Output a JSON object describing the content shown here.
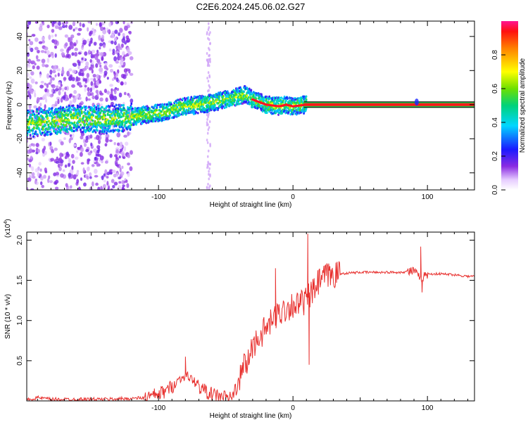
{
  "title": "C2E6.2024.245.06.02.G27",
  "chart_data": [
    {
      "type": "heatmap",
      "xlabel": "Height of straight line (km)",
      "ylabel": "Frequency (Hz)",
      "xlim": [
        -198,
        135
      ],
      "ylim": [
        -50,
        49
      ],
      "x_ticks": [
        -100,
        0,
        100
      ],
      "y_ticks": [
        -40,
        -20,
        0,
        20,
        40
      ],
      "ridge": {
        "x": [
          -198,
          -180,
          -160,
          -140,
          -120,
          -100,
          -80,
          -60,
          -45,
          -35,
          -30,
          -20,
          -10,
          -5,
          0,
          10,
          50,
          100,
          135
        ],
        "frequency_hz": [
          -11,
          -10,
          -8,
          -9,
          -7,
          -5,
          -1,
          1,
          4,
          6,
          3,
          0,
          -1,
          0,
          -1,
          0,
          0,
          0,
          0
        ]
      },
      "colorbar": {
        "label": "Normalized spectral amplitude",
        "range": [
          0,
          1
        ],
        "ticks": [
          "0.0",
          "0.2",
          "0.4",
          "0.6",
          "0.8"
        ]
      }
    },
    {
      "type": "line",
      "xlabel": "Height of straight line (km)",
      "ylabel": "SNR (10 * v/v)",
      "multiplier": "(x10",
      "multiplier_exp": "4",
      "multiplier_close": ")",
      "xlim": [
        -198,
        135
      ],
      "ylim": [
        0,
        2.1
      ],
      "x_ticks": [
        -100,
        0,
        100
      ],
      "y_ticks": [
        "0.5",
        "1.0",
        "1.5",
        "2.0"
      ],
      "color": "#e8312f",
      "series": {
        "x": [
          -198,
          -190,
          -180,
          -160,
          -140,
          -120,
          -110,
          -100,
          -95,
          -90,
          -85,
          -80,
          -75,
          -70,
          -65,
          -60,
          -55,
          -50,
          -45,
          -40,
          -37,
          -35,
          -30,
          -25,
          -20,
          -15,
          -10,
          -5,
          0,
          5,
          10,
          12,
          15,
          20,
          25,
          30,
          35,
          40,
          50,
          60,
          70,
          80,
          90,
          93,
          95,
          97,
          100,
          110,
          120,
          130,
          135
        ],
        "y": [
          0.01,
          0.04,
          0.02,
          0.02,
          0.02,
          0.03,
          0.04,
          0.08,
          0.12,
          0.18,
          0.26,
          0.32,
          0.27,
          0.18,
          0.12,
          0.08,
          0.06,
          0.05,
          0.05,
          0.25,
          0.45,
          0.42,
          0.68,
          0.8,
          0.9,
          1.0,
          1.1,
          1.15,
          1.2,
          1.2,
          1.25,
          1.3,
          1.35,
          1.5,
          1.55,
          1.57,
          1.58,
          1.59,
          1.6,
          1.6,
          1.6,
          1.6,
          1.62,
          1.55,
          1.5,
          1.55,
          1.58,
          1.58,
          1.57,
          1.55,
          1.55
        ],
        "spikes": [
          {
            "x": -80,
            "y": 0.55
          },
          {
            "x": -13,
            "y": 1.65
          },
          {
            "x": 11,
            "y": 2.08
          },
          {
            "x": 12,
            "y": 0.45
          },
          {
            "x": 95,
            "y": 1.92
          },
          {
            "x": 96,
            "y": 1.35
          }
        ]
      }
    }
  ]
}
